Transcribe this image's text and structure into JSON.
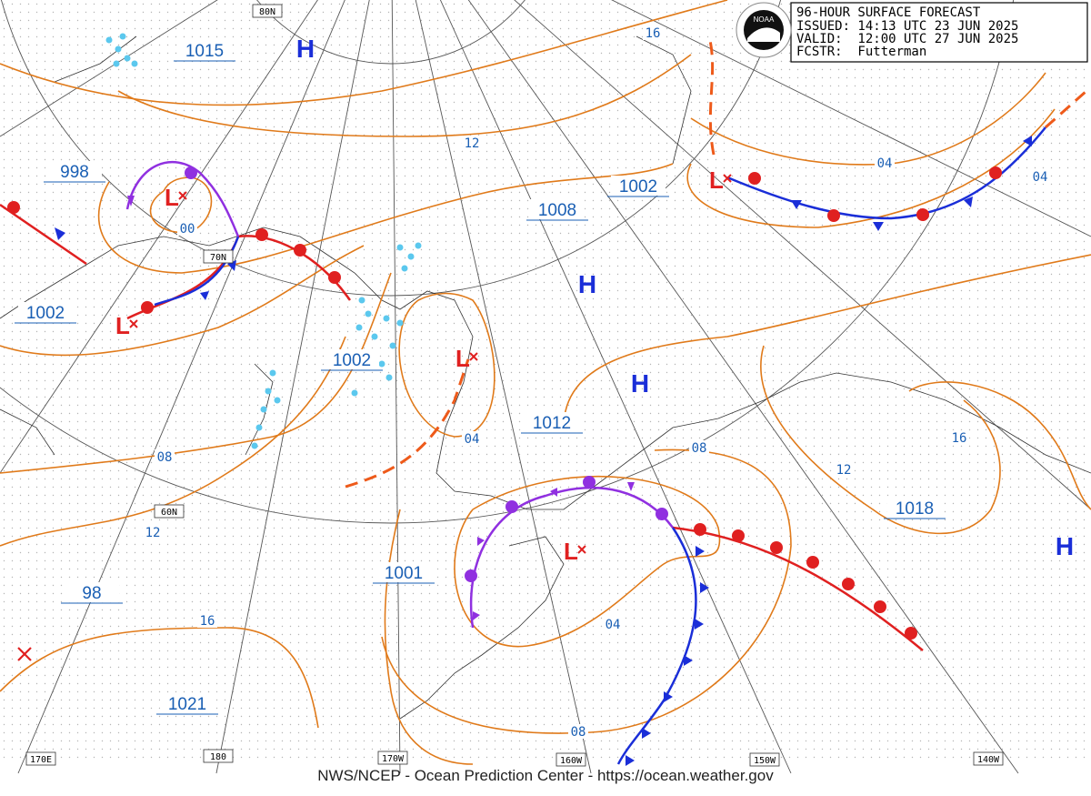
{
  "header": {
    "lines": [
      "96-HOUR SURFACE FORECAST",
      "ISSUED: 14:13 UTC 23 JUN 2025",
      "VALID:  12:00 UTC 27 JUN 2025",
      "FCSTR:  Futterman"
    ]
  },
  "logo": "NOAA",
  "footer": "NWS/NCEP - Ocean Prediction Center - https://ocean.weather.gov",
  "grid_labels": [
    "80N",
    "70N",
    "60N",
    "170E",
    "180",
    "170W",
    "160W",
    "150W",
    "140W"
  ],
  "highs": [
    "H",
    "H",
    "H",
    "H"
  ],
  "lows": [
    "L",
    "L",
    "L",
    "L",
    "L"
  ],
  "pressure_labels": [
    "1015",
    "998",
    "1002",
    "1008",
    "1002",
    "1002",
    "1012",
    "1001",
    "98",
    "1021",
    "1018"
  ],
  "isobar_labels": [
    "16",
    "12",
    "04",
    "04",
    "00",
    "04",
    "08",
    "12",
    "16",
    "08",
    "12",
    "16",
    "04",
    "08"
  ]
}
